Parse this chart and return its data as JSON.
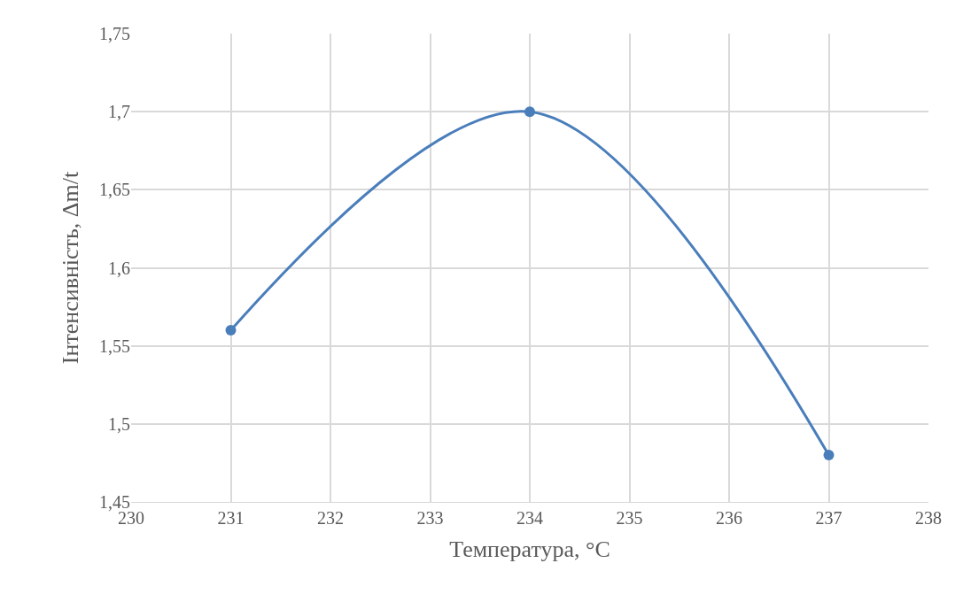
{
  "chart_data": {
    "type": "line",
    "xlabel": "Температура, °C",
    "ylabel": "Інтенсивність, Δm/t",
    "x": [
      231,
      234,
      237
    ],
    "series": [
      {
        "color": "#4a7ebb",
        "values": [
          1.56,
          1.7,
          1.48
        ]
      }
    ],
    "xlim": [
      230,
      238
    ],
    "xticks": [
      230,
      231,
      232,
      233,
      234,
      235,
      236,
      237,
      238
    ],
    "ylim": [
      1.45,
      1.75
    ],
    "yticks": [
      {
        "value": 1.45,
        "label": "1,45"
      },
      {
        "value": 1.5,
        "label": "1,5"
      },
      {
        "value": 1.55,
        "label": "1,55"
      },
      {
        "value": 1.6,
        "label": "1,6"
      },
      {
        "value": 1.65,
        "label": "1,65"
      },
      {
        "value": 1.7,
        "label": "1,7"
      },
      {
        "value": 1.75,
        "label": "1,75"
      }
    ],
    "grid": true,
    "marker": "circle",
    "legend": false
  }
}
